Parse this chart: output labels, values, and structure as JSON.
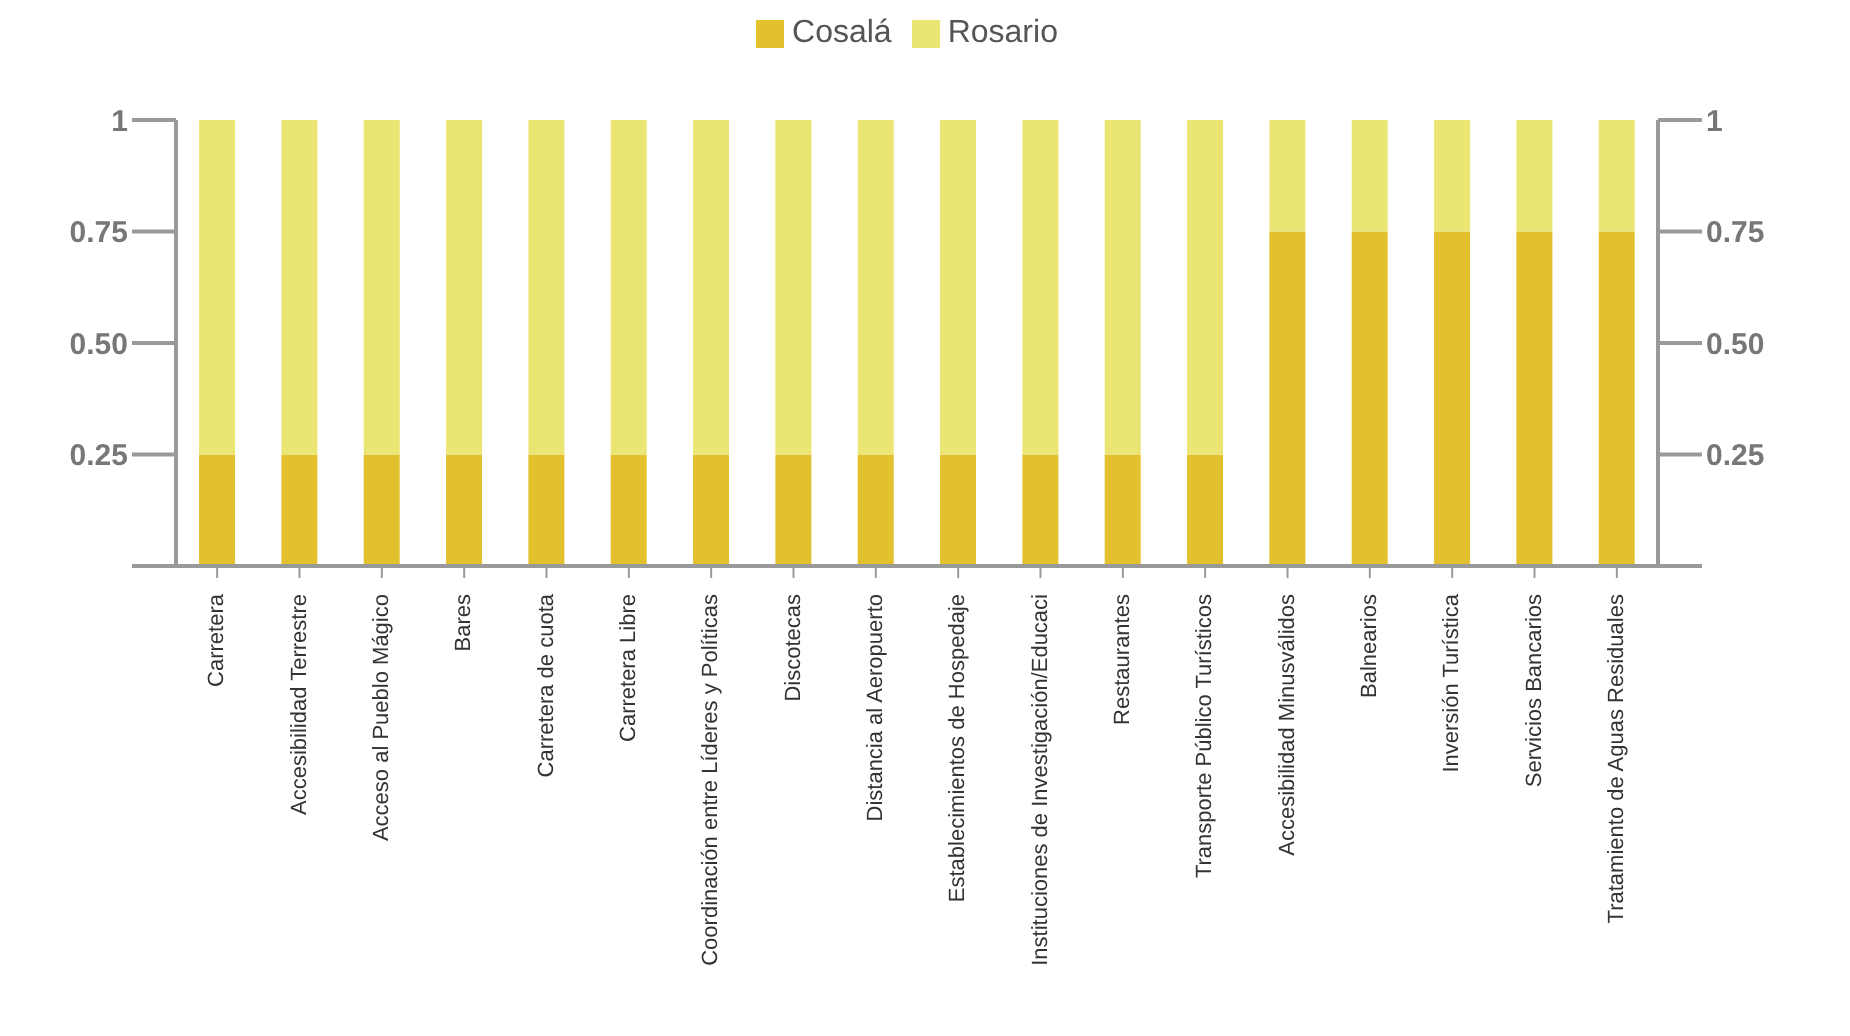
{
  "chart_data": {
    "type": "bar",
    "stacked": true,
    "legend": "top",
    "categories": [
      "Carretera",
      "Accesibilidad Terrestre",
      "Acceso al Pueblo Mágico",
      "Bares",
      "Carretera de cuota",
      "Carretera Libre",
      "Coordinación entre Líderes y Políticas",
      "Discotecas",
      "Distancia al Aeropuerto",
      "Establecimientos de Hospedaje",
      "Instituciones de Investigación/Educaci",
      "Restaurantes",
      "Transporte Público Turísticos",
      "Accesibilidad Minusválidos",
      "Balnearios",
      "Inversión Turística",
      "Servicios Bancarios",
      "Tratamiento de Aguas Residuales"
    ],
    "series": [
      {
        "name": "Cosalá",
        "color": "#e3c02e",
        "values": [
          0.25,
          0.25,
          0.25,
          0.25,
          0.25,
          0.25,
          0.25,
          0.25,
          0.25,
          0.25,
          0.25,
          0.25,
          0.25,
          0.75,
          0.75,
          0.75,
          0.75,
          0.75
        ]
      },
      {
        "name": "Rosario",
        "color": "#ebe673",
        "values": [
          0.75,
          0.75,
          0.75,
          0.75,
          0.75,
          0.75,
          0.75,
          0.75,
          0.75,
          0.75,
          0.75,
          0.75,
          0.75,
          0.25,
          0.25,
          0.25,
          0.25,
          0.25
        ]
      }
    ],
    "ylim": [
      0,
      1
    ],
    "yticks": [
      {
        "value": 0,
        "label": null
      },
      0.25,
      {
        "value": 0.5,
        "label": "0.50"
      },
      0.75,
      1
    ],
    "y2lim": [
      0,
      1
    ],
    "y2ticks": [
      {
        "value": 0,
        "label": null
      },
      0.25,
      {
        "value": 0.5,
        "label": "0.50"
      },
      0.75,
      1
    ]
  }
}
